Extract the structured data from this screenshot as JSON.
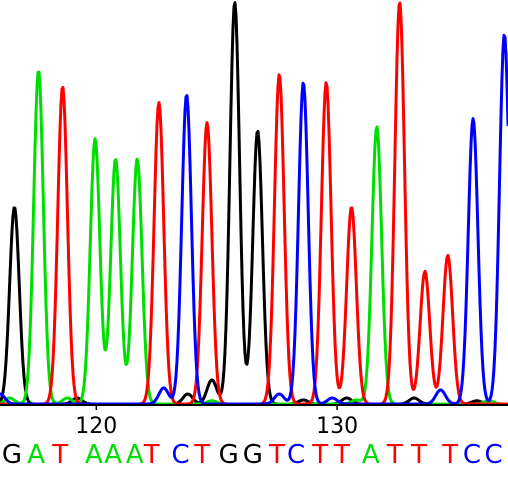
{
  "chart_data": {
    "type": "line",
    "title": "",
    "xlabel": "",
    "ylabel": "",
    "grid": false,
    "legend": "none",
    "position_ticks": [
      {
        "position": 120,
        "label": "120"
      },
      {
        "position": 130,
        "label": "130"
      }
    ],
    "position_range": [
      116,
      137.1
    ],
    "ylim": [
      0,
      100
    ],
    "colors": {
      "A": "#00dd00",
      "C": "#0000ff",
      "G": "#000000",
      "T": "#ff0000"
    },
    "bases": [
      {
        "base": "G",
        "position": 116.5
      },
      {
        "base": "A",
        "position": 117.5
      },
      {
        "base": "T",
        "position": 118.5
      },
      {
        "base": "A",
        "position": 119.9
      },
      {
        "base": "A",
        "position": 120.7
      },
      {
        "base": "A",
        "position": 121.6
      },
      {
        "base": "T",
        "position": 122.3
      },
      {
        "base": "C",
        "position": 123.5
      },
      {
        "base": "T",
        "position": 124.4
      },
      {
        "base": "G",
        "position": 125.5
      },
      {
        "base": "G",
        "position": 126.5
      },
      {
        "base": "T",
        "position": 127.5
      },
      {
        "base": "C",
        "position": 128.3
      },
      {
        "base": "T",
        "position": 129.3
      },
      {
        "base": "T",
        "position": 130.2
      },
      {
        "base": "A",
        "position": 131.4
      },
      {
        "base": "T",
        "position": 132.4
      },
      {
        "base": "T",
        "position": 133.4
      },
      {
        "base": "T",
        "position": 134.7
      },
      {
        "base": "C",
        "position": 135.6
      },
      {
        "base": "C",
        "position": 136.5
      }
    ],
    "series": [
      {
        "base": "G",
        "peaks": [
          {
            "position": 116.6,
            "height": 49
          },
          {
            "position": 119.2,
            "height": 1.5
          },
          {
            "position": 123.8,
            "height": 2.5
          },
          {
            "position": 124.8,
            "height": 6
          },
          {
            "position": 125.75,
            "height": 100
          },
          {
            "position": 126.7,
            "height": 68
          },
          {
            "position": 128.6,
            "height": 1
          },
          {
            "position": 130.4,
            "height": 1.5
          },
          {
            "position": 133.2,
            "height": 1.5
          },
          {
            "position": 135.8,
            "height": 0.8
          }
        ]
      },
      {
        "base": "A",
        "peaks": [
          {
            "position": 116.4,
            "height": 1.5
          },
          {
            "position": 117.6,
            "height": 83
          },
          {
            "position": 118.8,
            "height": 1.5
          },
          {
            "position": 119.95,
            "height": 66
          },
          {
            "position": 120.8,
            "height": 61
          },
          {
            "position": 121.7,
            "height": 61
          },
          {
            "position": 124.8,
            "height": 0.8
          },
          {
            "position": 130.8,
            "height": 1
          },
          {
            "position": 131.65,
            "height": 69
          },
          {
            "position": 136.3,
            "height": 0.8
          }
        ]
      },
      {
        "base": "T",
        "peaks": [
          {
            "position": 118.6,
            "height": 79
          },
          {
            "position": 122.6,
            "height": 75
          },
          {
            "position": 124.6,
            "height": 70
          },
          {
            "position": 127.6,
            "height": 82
          },
          {
            "position": 129.55,
            "height": 80
          },
          {
            "position": 130.6,
            "height": 49
          },
          {
            "position": 132.6,
            "height": 100
          },
          {
            "position": 133.65,
            "height": 33
          },
          {
            "position": 134.6,
            "height": 37
          }
        ]
      },
      {
        "base": "C",
        "peaks": [
          {
            "position": 116.0,
            "height": 2.5
          },
          {
            "position": 122.8,
            "height": 4
          },
          {
            "position": 123.75,
            "height": 77
          },
          {
            "position": 127.6,
            "height": 2.5
          },
          {
            "position": 128.6,
            "height": 80
          },
          {
            "position": 129.8,
            "height": 1.5
          },
          {
            "position": 134.3,
            "height": 3.5
          },
          {
            "position": 135.65,
            "height": 71
          },
          {
            "position": 136.95,
            "height": 92
          }
        ]
      }
    ]
  }
}
